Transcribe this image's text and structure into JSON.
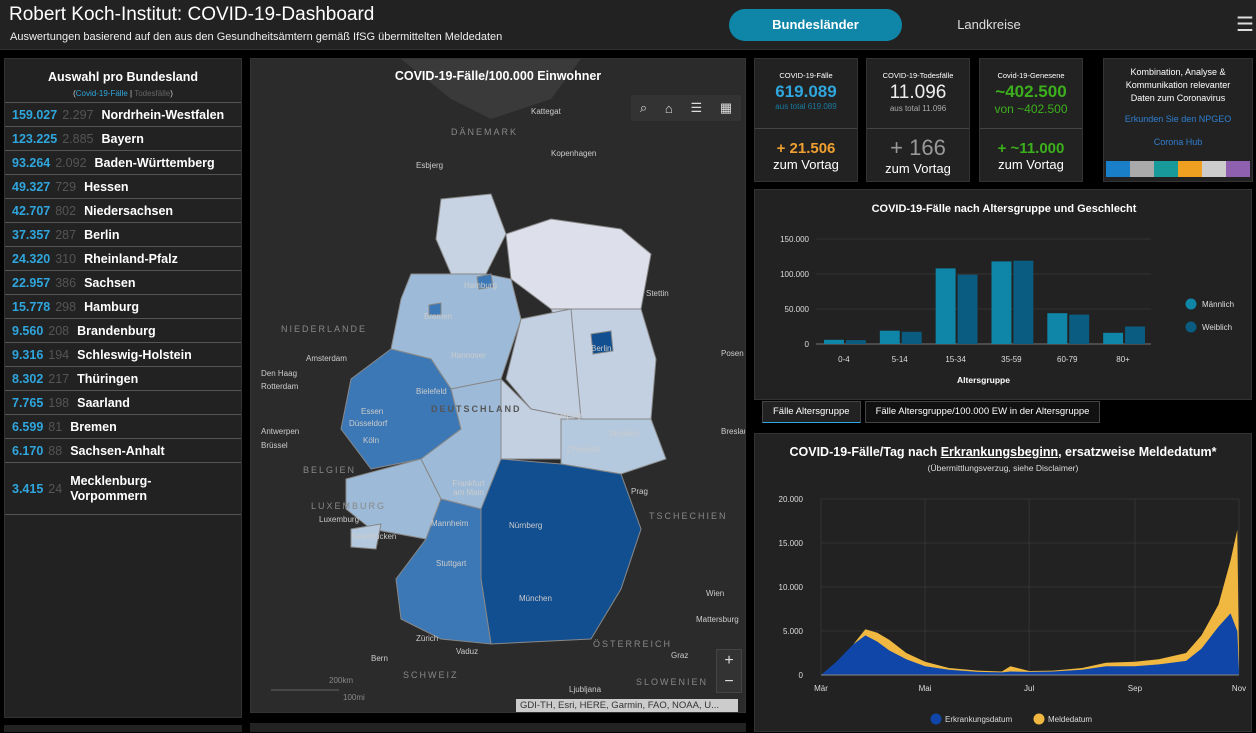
{
  "header": {
    "title": "Robert Koch-Institut: COVID-19-Dashboard",
    "subtitle": "Auswertungen basierend auf den aus den Gesundheitsämtern gemäß IfSG übermittelten Meldedaten",
    "tabs": [
      "Bundesländer",
      "Landkreise"
    ],
    "menu_icon": "hamburger-menu-icon"
  },
  "left": {
    "title": "Auswahl pro Bundesland",
    "legend_open": "(",
    "legend_cases": "Covid-19-Fälle",
    "legend_sep": " | ",
    "legend_deaths": "Todesfälle",
    "legend_close": ")",
    "rows": [
      {
        "cases": "159.027",
        "deaths": "2.297",
        "name": "Nordrhein-Westfalen"
      },
      {
        "cases": "123.225",
        "deaths": "2.885",
        "name": "Bayern"
      },
      {
        "cases": "93.264",
        "deaths": "2.092",
        "name": "Baden-Württemberg"
      },
      {
        "cases": "49.327",
        "deaths": "729",
        "name": "Hessen"
      },
      {
        "cases": "42.707",
        "deaths": "802",
        "name": "Niedersachsen"
      },
      {
        "cases": "37.357",
        "deaths": "287",
        "name": "Berlin"
      },
      {
        "cases": "24.320",
        "deaths": "310",
        "name": "Rheinland-Pfalz"
      },
      {
        "cases": "22.957",
        "deaths": "386",
        "name": "Sachsen"
      },
      {
        "cases": "15.778",
        "deaths": "298",
        "name": "Hamburg"
      },
      {
        "cases": "9.560",
        "deaths": "208",
        "name": "Brandenburg"
      },
      {
        "cases": "9.316",
        "deaths": "194",
        "name": "Schleswig-Holstein"
      },
      {
        "cases": "8.302",
        "deaths": "217",
        "name": "Thüringen"
      },
      {
        "cases": "7.765",
        "deaths": "198",
        "name": "Saarland"
      },
      {
        "cases": "6.599",
        "deaths": "81",
        "name": "Bremen"
      },
      {
        "cases": "6.170",
        "deaths": "88",
        "name": "Sachsen-Anhalt"
      },
      {
        "cases": "3.415",
        "deaths": "24",
        "name": "Mecklenburg-Vorpommern"
      }
    ]
  },
  "map": {
    "title": "COVID-19-Fälle/100.000 Einwohner",
    "tools": [
      "search-icon",
      "home-icon",
      "list-icon",
      "grid-icon"
    ],
    "zoom_in": "+",
    "zoom_out": "−",
    "scale_km": "200km",
    "scale_mi": "100mi",
    "attribution": "GDI-TH, Esri, HERE, Garmin, FAO, NOAA, U...",
    "cities": [
      "Kattegat",
      "Esbjerg",
      "Kopenhagen",
      "Hamburg",
      "Stettin",
      "Bremen",
      "Berlin",
      "Amsterdam",
      "Hannover",
      "Posen",
      "Den Haag",
      "Rotterdam",
      "Bielefeld",
      "Essen",
      "Düsseldorf",
      "Leipzig",
      "Antwerpen",
      "Köln",
      "Dresden",
      "Breslau",
      "Brüssel",
      "Chemnitz",
      "Frankfurt am Main",
      "Prag",
      "Luxemburg",
      "Mannheim",
      "Nürnberg",
      "Saarbrücken",
      "Stuttgart",
      "München",
      "Wien",
      "Mattersburg",
      "Zürich",
      "Vaduz",
      "Bern",
      "Graz",
      "Ljubljana"
    ],
    "countries": [
      "DÄNEMARK",
      "NIEDERLANDE",
      "BELGIEN",
      "DEUTSCHLAND",
      "LUXEMBURG",
      "TSCHECHIEN",
      "ÖSTERREICH",
      "SCHWEIZ",
      "SLOWENIEN"
    ],
    "colors": {
      "low": "#d6dbe6",
      "midlow": "#b4c8de",
      "mid": "#8bb0d2",
      "high": "#3c78b5",
      "highest": "#114f91"
    }
  },
  "kpis": [
    {
      "label": "COVID-19-Fälle",
      "value": "619.089",
      "sub": "aus total 619.089",
      "delta": "+ 21.506",
      "delta_label": "zum Vortag",
      "color": "#2fa6dd",
      "delta_color": "#f0a030"
    },
    {
      "label": "COVID-19-Todesfälle",
      "value": "11.096",
      "sub": "aus total 11.096",
      "delta": "+ 166",
      "delta_label": "zum Vortag",
      "color": "#eeeeee",
      "delta_color": "#999999"
    },
    {
      "label": "Covid-19-Genesene",
      "value": "~402.500",
      "sub": "von ~402.500",
      "delta": "+ ~11.000",
      "delta_label": "zum Vortag",
      "color": "#3cb01c",
      "delta_color": "#3cb01c"
    }
  ],
  "info": {
    "text": "Kombination, Analyse & Kommunikation relevanter Daten zum Coronavirus",
    "link1": "Erkunden Sie den NPGEO",
    "link2": "Corona Hub"
  },
  "subtabs": [
    "Fälle Altersgruppe",
    "Fälle Altersgruppe/100.000 EW in der Altersgruppe"
  ],
  "chart_data": [
    {
      "type": "bar",
      "title": "COVID-19-Fälle nach Altersgruppe und Geschlecht",
      "xlabel": "Altersgruppe",
      "ylabel": "",
      "categories": [
        "0-4",
        "5-14",
        "15-34",
        "35-59",
        "60-79",
        "80+"
      ],
      "ylim": [
        0,
        150000
      ],
      "yticks": [
        "0",
        "50.000",
        "100.000",
        "150.000"
      ],
      "legend": "right",
      "series": [
        {
          "name": "Männlich",
          "color": "#0f86a8",
          "values": [
            6000,
            19000,
            108000,
            118000,
            44000,
            16000
          ]
        },
        {
          "name": "Weiblich",
          "color": "#0a5c80",
          "values": [
            5500,
            17500,
            99000,
            119000,
            42000,
            25000
          ]
        }
      ]
    },
    {
      "type": "area",
      "title": "COVID-19-Fälle/Tag nach Erkrankungsbeginn, ersatzweise Meldedatum*",
      "title_pre": "COVID-19-Fälle/Tag nach ",
      "title_link": "Erkrankungsbeginn",
      "title_post": ", ersatzweise Meldedatum*",
      "subtitle": "(Übermittlungsverzug, siehe Disclaimer)",
      "ylim": [
        0,
        20000
      ],
      "yticks": [
        "0",
        "5.000",
        "10.000",
        "15.000",
        "20.000"
      ],
      "xticks": [
        "Mär",
        "Mai",
        "Jul",
        "Sep",
        "Nov"
      ],
      "legend": "bottom",
      "x": [
        "2020-03-01",
        "2020-03-10",
        "2020-03-20",
        "2020-03-27",
        "2020-04-03",
        "2020-04-10",
        "2020-04-20",
        "2020-05-01",
        "2020-05-15",
        "2020-06-01",
        "2020-06-15",
        "2020-06-20",
        "2020-07-01",
        "2020-07-15",
        "2020-08-01",
        "2020-08-15",
        "2020-09-01",
        "2020-09-15",
        "2020-10-01",
        "2020-10-10",
        "2020-10-20",
        "2020-10-27",
        "2020-10-31",
        "2020-11-01"
      ],
      "series": [
        {
          "name": "Erkrankungsdatum",
          "color": "#1046a8",
          "values": [
            0,
            1500,
            3500,
            4500,
            3800,
            2800,
            1800,
            1000,
            600,
            350,
            300,
            400,
            350,
            400,
            600,
            1000,
            1000,
            1200,
            1600,
            3000,
            5500,
            7000,
            5000,
            500
          ]
        },
        {
          "name": "Meldedatum",
          "color": "#f0b840",
          "values": [
            0,
            1000,
            3500,
            5200,
            4800,
            4000,
            2500,
            1500,
            800,
            500,
            400,
            1000,
            450,
            500,
            800,
            1400,
            1500,
            1800,
            2500,
            4500,
            8000,
            13000,
            16500,
            2000
          ]
        }
      ]
    }
  ]
}
